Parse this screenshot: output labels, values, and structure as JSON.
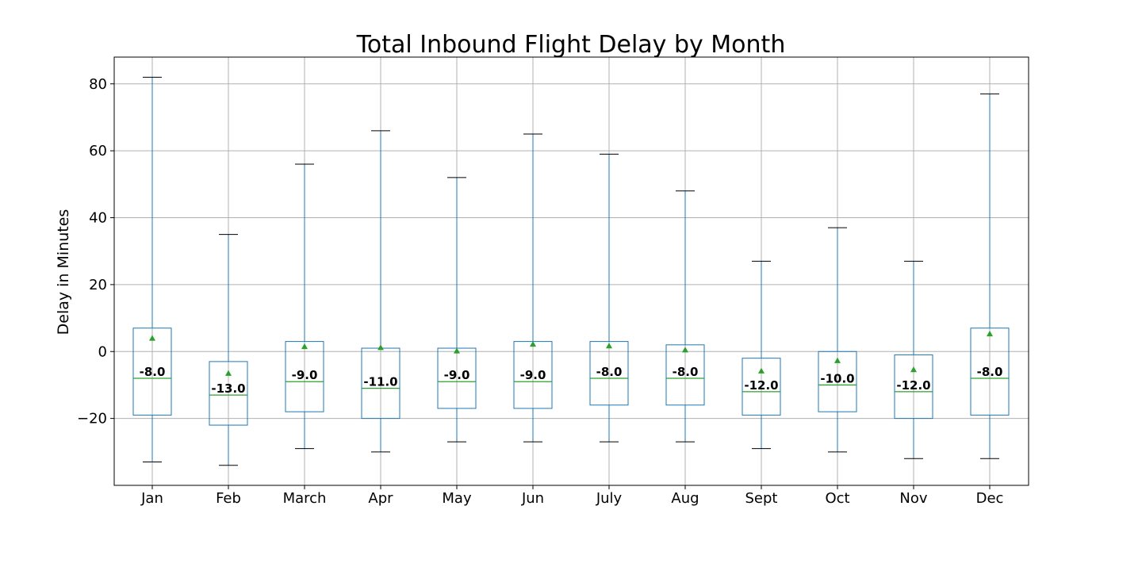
{
  "chart_data": {
    "type": "box",
    "title": "Total Inbound Flight Delay by Month",
    "xlabel": "",
    "ylabel": "Delay in Minutes",
    "ylim": [
      -40,
      88
    ],
    "yticks": [
      -20,
      0,
      20,
      40,
      60,
      80
    ],
    "ytick_labels": [
      "−20",
      "0",
      "20",
      "40",
      "60",
      "80"
    ],
    "grid": true,
    "categories": [
      "Jan",
      "Feb",
      "March",
      "Apr",
      "May",
      "Jun",
      "July",
      "Aug",
      "Sept",
      "Oct",
      "Nov",
      "Dec"
    ],
    "whisker_low": [
      -33,
      -34,
      -29,
      -30,
      -27,
      -27,
      -27,
      -27,
      -29,
      -30,
      -32,
      -32
    ],
    "q1": [
      -19,
      -22,
      -18,
      -20,
      -17,
      -17,
      -16,
      -16,
      -19,
      -18,
      -20,
      -19
    ],
    "median": [
      -8,
      -13,
      -9,
      -11,
      -9,
      -9,
      -8,
      -8,
      -12,
      -10,
      -12,
      -8
    ],
    "q3": [
      7,
      -3,
      3,
      1,
      1,
      3,
      3,
      2,
      -2,
      0,
      -1,
      7
    ],
    "whisker_high": [
      82,
      35,
      56,
      66,
      52,
      65,
      59,
      48,
      27,
      37,
      27,
      77
    ],
    "mean": [
      4,
      -6.5,
      1.5,
      1.2,
      0.2,
      2.2,
      1.7,
      0.5,
      -5.8,
      -2.7,
      -5.4,
      5.3
    ],
    "median_labels": [
      "-8.0",
      "-13.0",
      "-9.0",
      "-11.0",
      "-9.0",
      "-9.0",
      "-8.0",
      "-8.0",
      "-12.0",
      "-10.0",
      "-12.0",
      "-8.0"
    ],
    "colors": {
      "box": "#1f77b4",
      "median": "#2ca02c",
      "mean_marker": "#2ca02c",
      "cap": "#000000",
      "grid": "#b0b0b0",
      "frame": "#000000"
    }
  }
}
